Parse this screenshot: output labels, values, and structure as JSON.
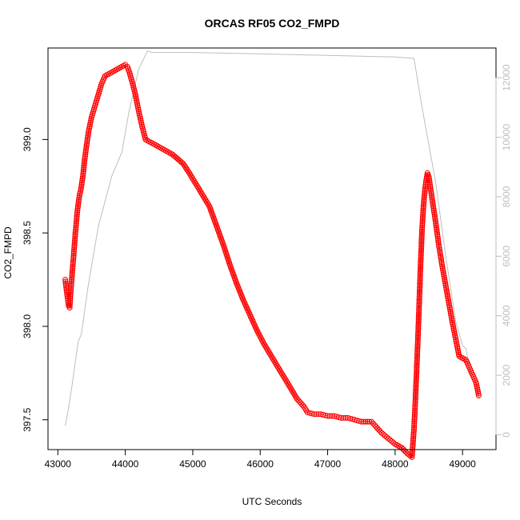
{
  "chart_data": {
    "type": "scatter",
    "title": "ORCAS RF05 CO2_FMPD",
    "xlabel": "UTC Seconds",
    "ylabel": "CO2_FMPD",
    "xlim": [
      43100,
      49250
    ],
    "ylim": [
      397.42,
      399.41
    ],
    "y2lim": [
      0,
      12500
    ],
    "x_ticks": [
      43000,
      44000,
      45000,
      46000,
      47000,
      48000,
      49000
    ],
    "y_ticks": [
      397.5,
      398.0,
      398.5,
      399.0
    ],
    "y2_ticks": [
      0,
      2000,
      4000,
      6000,
      8000,
      10000,
      12000
    ],
    "grid": false,
    "series": [
      {
        "style": "points-with-line",
        "color": "#ff0000",
        "points": [
          [
            43110,
            398.25
          ],
          [
            43130,
            398.19
          ],
          [
            43145,
            398.15
          ],
          [
            43160,
            398.11
          ],
          [
            43175,
            398.1
          ],
          [
            43200,
            398.23
          ],
          [
            43230,
            398.36
          ],
          [
            43260,
            398.5
          ],
          [
            43290,
            398.62
          ],
          [
            43320,
            398.7
          ],
          [
            43340,
            398.73
          ],
          [
            43370,
            398.8
          ],
          [
            43400,
            398.9
          ],
          [
            43430,
            398.98
          ],
          [
            43460,
            399.05
          ],
          [
            43500,
            399.12
          ],
          [
            43550,
            399.18
          ],
          [
            43600,
            399.24
          ],
          [
            43650,
            399.3
          ],
          [
            43700,
            399.34
          ],
          [
            43750,
            399.35
          ],
          [
            43800,
            399.36
          ],
          [
            43850,
            399.37
          ],
          [
            43900,
            399.38
          ],
          [
            43950,
            399.39
          ],
          [
            44000,
            399.4
          ],
          [
            44030,
            399.39
          ],
          [
            44060,
            399.36
          ],
          [
            44100,
            399.31
          ],
          [
            44150,
            399.24
          ],
          [
            44200,
            399.15
          ],
          [
            44250,
            399.07
          ],
          [
            44300,
            399.0
          ],
          [
            44400,
            398.98
          ],
          [
            44500,
            398.96
          ],
          [
            44600,
            398.94
          ],
          [
            44700,
            398.92
          ],
          [
            44860,
            398.87
          ],
          [
            44950,
            398.82
          ],
          [
            45050,
            398.76
          ],
          [
            45150,
            398.7
          ],
          [
            45250,
            398.64
          ],
          [
            45350,
            398.54
          ],
          [
            45450,
            398.44
          ],
          [
            45550,
            398.33
          ],
          [
            45650,
            398.23
          ],
          [
            45750,
            398.14
          ],
          [
            45850,
            398.06
          ],
          [
            45950,
            397.98
          ],
          [
            46050,
            397.91
          ],
          [
            46150,
            397.85
          ],
          [
            46250,
            397.79
          ],
          [
            46350,
            397.73
          ],
          [
            46450,
            397.67
          ],
          [
            46550,
            397.61
          ],
          [
            46650,
            397.57
          ],
          [
            46700,
            397.54
          ],
          [
            46800,
            397.53
          ],
          [
            46900,
            397.53
          ],
          [
            47000,
            397.52
          ],
          [
            47100,
            397.52
          ],
          [
            47200,
            397.51
          ],
          [
            47300,
            397.51
          ],
          [
            47400,
            397.5
          ],
          [
            47500,
            397.49
          ],
          [
            47650,
            397.49
          ],
          [
            47700,
            397.47
          ],
          [
            47800,
            397.43
          ],
          [
            47900,
            397.4
          ],
          [
            48000,
            397.37
          ],
          [
            48100,
            397.35
          ],
          [
            48180,
            397.32
          ],
          [
            48250,
            397.3
          ],
          [
            48280,
            397.45
          ],
          [
            48300,
            397.6
          ],
          [
            48320,
            397.77
          ],
          [
            48340,
            397.95
          ],
          [
            48360,
            398.15
          ],
          [
            48380,
            398.35
          ],
          [
            48400,
            398.52
          ],
          [
            48420,
            398.64
          ],
          [
            48440,
            398.72
          ],
          [
            48460,
            398.78
          ],
          [
            48480,
            398.82
          ],
          [
            48500,
            398.8
          ],
          [
            48550,
            398.68
          ],
          [
            48600,
            398.56
          ],
          [
            48650,
            398.43
          ],
          [
            48700,
            398.32
          ],
          [
            48750,
            398.22
          ],
          [
            48800,
            398.12
          ],
          [
            48850,
            398.02
          ],
          [
            48900,
            397.93
          ],
          [
            48950,
            397.84
          ],
          [
            49000,
            397.83
          ],
          [
            49050,
            397.82
          ],
          [
            49100,
            397.78
          ],
          [
            49150,
            397.74
          ],
          [
            49200,
            397.7
          ],
          [
            49240,
            397.63
          ]
        ]
      },
      {
        "style": "line",
        "color": "#bebebe",
        "axis": "right",
        "points": [
          [
            43110,
            300
          ],
          [
            43150,
            800
          ],
          [
            43200,
            1500
          ],
          [
            43300,
            3100
          ],
          [
            43350,
            3400
          ],
          [
            43450,
            5000
          ],
          [
            43600,
            7000
          ],
          [
            43800,
            8700
          ],
          [
            43950,
            9500
          ],
          [
            44050,
            10800
          ],
          [
            44200,
            12300
          ],
          [
            44330,
            12900
          ],
          [
            44400,
            12850
          ],
          [
            45000,
            12850
          ],
          [
            46000,
            12800
          ],
          [
            47000,
            12750
          ],
          [
            48000,
            12700
          ],
          [
            48280,
            12650
          ],
          [
            48400,
            11000
          ],
          [
            48600,
            8500
          ],
          [
            48750,
            6000
          ],
          [
            48900,
            3800
          ],
          [
            49000,
            3000
          ],
          [
            49050,
            2900
          ],
          [
            49100,
            2200
          ],
          [
            49200,
            1500
          ],
          [
            49250,
            1200
          ]
        ]
      }
    ]
  }
}
